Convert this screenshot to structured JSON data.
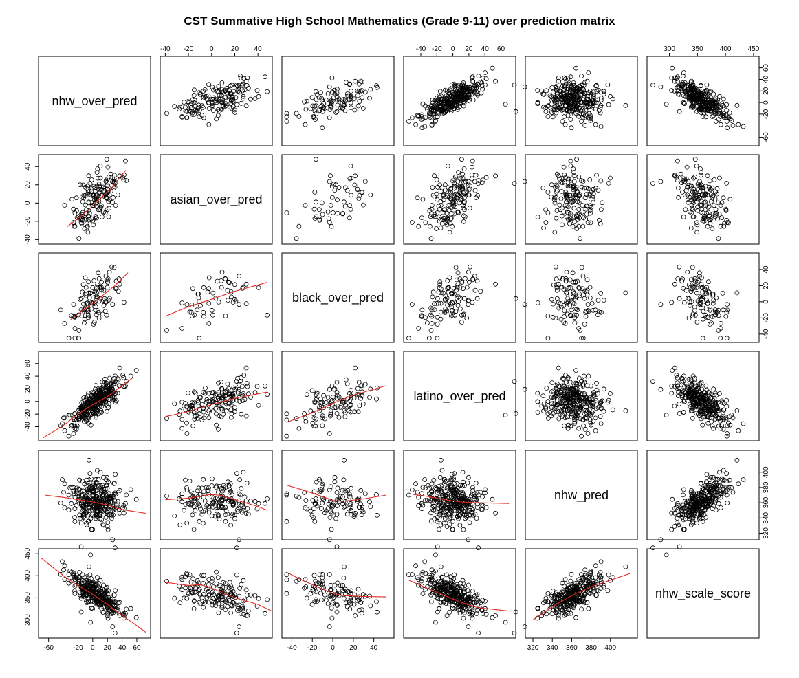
{
  "chart_data": {
    "type": "scatter",
    "title": "CST Summative High School Mathematics (Grade 9-11)  over prediction matrix",
    "variables": [
      "nhw_over_pred",
      "asian_over_pred",
      "black_over_pred",
      "latino_over_pred",
      "nhw_pred",
      "nhw_scale_score"
    ],
    "ranges": {
      "nhw_over_pred": [
        -70,
        75
      ],
      "asian_over_pred": [
        -42,
        50
      ],
      "black_over_pred": [
        -47,
        57
      ],
      "latino_over_pred": [
        -58,
        75
      ],
      "nhw_pred": [
        315,
        425
      ],
      "nhw_scale_score": [
        265,
        455
      ]
    },
    "ticks": {
      "nhw_over_pred": [
        "-60",
        "-20",
        "0",
        "20",
        "40",
        "60"
      ],
      "asian_over_pred": [
        "-40",
        "-20",
        "0",
        "20",
        "40"
      ],
      "black_over_pred": [
        "-40",
        "-20",
        "0",
        "20",
        "40"
      ],
      "latino_over_pred": [
        "-40",
        "-20",
        "0",
        "20",
        "40",
        "60"
      ],
      "nhw_pred": [
        "320",
        "340",
        "360",
        "380",
        "400"
      ],
      "nhw_scale_score": [
        "300",
        "350",
        "400",
        "450"
      ]
    },
    "axis_sides": {
      "bottom_cols": [
        0,
        2,
        4
      ],
      "top_cols": [
        1,
        3,
        5
      ],
      "left_rows": [
        1,
        3,
        5
      ],
      "right_rows": [
        0,
        2,
        4
      ]
    },
    "point_counts": {
      "nhw_over_pred": 330,
      "asian_over_pred": 170,
      "black_over_pred": 110,
      "latino_over_pred": 330,
      "nhw_pred": 330,
      "nhw_scale_score": 330
    },
    "smoothers": [
      {
        "x": "nhw_over_pred",
        "y": "asian_over_pred",
        "xs": [
          -35,
          -20,
          -5,
          10,
          25,
          45
        ],
        "ys": [
          -26,
          -17,
          -7,
          5,
          16,
          36
        ]
      },
      {
        "x": "nhw_over_pred",
        "y": "black_over_pred",
        "xs": [
          -30,
          -15,
          0,
          15,
          30,
          48
        ],
        "ys": [
          -22,
          -12,
          -2,
          9,
          20,
          36
        ]
      },
      {
        "x": "asian_over_pred",
        "y": "black_over_pred",
        "xs": [
          -40,
          -20,
          0,
          20,
          48
        ],
        "ys": [
          -18,
          -6,
          3,
          13,
          24
        ]
      },
      {
        "x": "nhw_over_pred",
        "y": "latino_over_pred",
        "xs": [
          -68,
          -40,
          -20,
          0,
          20,
          40,
          55
        ],
        "ys": [
          -58,
          -38,
          -20,
          -5,
          8,
          25,
          38
        ]
      },
      {
        "x": "asian_over_pred",
        "y": "latino_over_pred",
        "xs": [
          -40,
          -20,
          0,
          20,
          48
        ],
        "ys": [
          -24,
          -16,
          -5,
          5,
          15
        ]
      },
      {
        "x": "black_over_pred",
        "y": "latino_over_pred",
        "xs": [
          -45,
          -20,
          0,
          20,
          52
        ],
        "ys": [
          -33,
          -18,
          -3,
          10,
          25
        ]
      },
      {
        "x": "nhw_over_pred",
        "y": "nhw_pred",
        "xs": [
          -65,
          -40,
          -20,
          0,
          20,
          40,
          72
        ],
        "ys": [
          370,
          367,
          364,
          361,
          357,
          351,
          346
        ]
      },
      {
        "x": "asian_over_pred",
        "y": "nhw_pred",
        "xs": [
          -40,
          -20,
          0,
          10,
          20,
          40,
          48
        ],
        "ys": [
          364,
          366,
          371,
          369,
          364,
          355,
          350
        ]
      },
      {
        "x": "black_over_pred",
        "y": "nhw_pred",
        "xs": [
          -45,
          -30,
          -10,
          0,
          10,
          30,
          52
        ],
        "ys": [
          383,
          377,
          368,
          363,
          362,
          365,
          370
        ]
      },
      {
        "x": "latino_over_pred",
        "y": "nhw_pred",
        "xs": [
          -50,
          -30,
          -10,
          10,
          30,
          70
        ],
        "ys": [
          371,
          368,
          364,
          361,
          360,
          359
        ]
      },
      {
        "x": "nhw_over_pred",
        "y": "nhw_scale_score",
        "xs": [
          -70,
          -40,
          -20,
          0,
          20,
          40,
          60,
          72
        ],
        "ys": [
          440,
          400,
          378,
          358,
          335,
          310,
          287,
          272
        ]
      },
      {
        "x": "asian_over_pred",
        "y": "nhw_scale_score",
        "xs": [
          -40,
          -20,
          -10,
          0,
          20,
          40,
          52
        ],
        "ys": [
          385,
          378,
          380,
          372,
          350,
          335,
          320
        ]
      },
      {
        "x": "black_over_pred",
        "y": "nhw_scale_score",
        "xs": [
          -45,
          -30,
          -10,
          0,
          10,
          30,
          52
        ],
        "ys": [
          408,
          390,
          370,
          360,
          355,
          353,
          352
        ]
      },
      {
        "x": "latino_over_pred",
        "y": "nhw_scale_score",
        "xs": [
          -55,
          -30,
          -10,
          10,
          30,
          70
        ],
        "ys": [
          390,
          370,
          355,
          340,
          328,
          320
        ]
      },
      {
        "x": "nhw_pred",
        "y": "nhw_scale_score",
        "xs": [
          320,
          340,
          360,
          380,
          400,
          420
        ],
        "ys": [
          300,
          330,
          355,
          375,
          390,
          405
        ]
      }
    ]
  }
}
